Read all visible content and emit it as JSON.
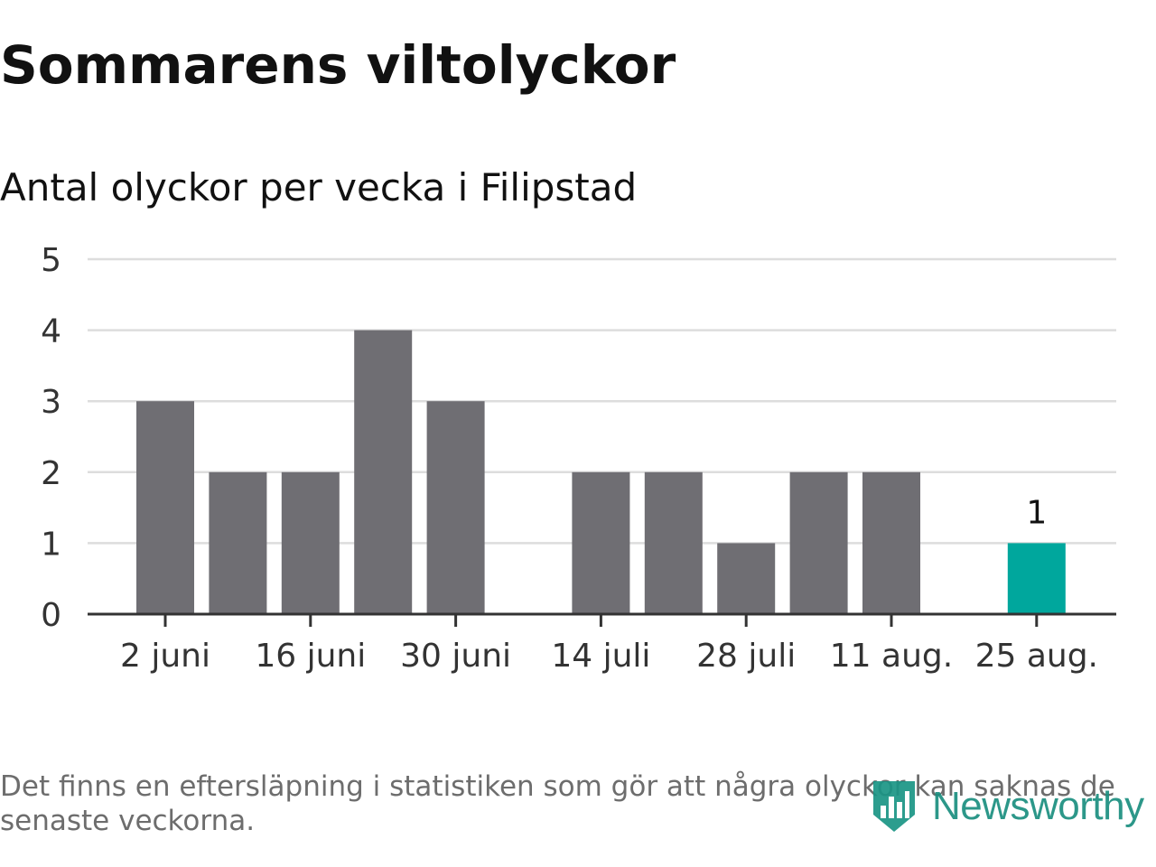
{
  "title": "Sommarens viltolyckor",
  "subtitle": "Antal olyckor per vecka i Filipstad",
  "note": "Det finns en eftersläpning i statistiken som gör att några olyckor kan saknas de senaste veckorna.",
  "brand": {
    "name": "Newsworthy",
    "color": "#1b9585",
    "icon": "bar-chart-shield-icon"
  },
  "colors": {
    "bar": "#6f6e73",
    "highlight": "#00a79d",
    "grid": "#dddddd",
    "axis": "#333333",
    "tick_text": "#333333"
  },
  "chart_data": {
    "type": "bar",
    "x": [
      "2 juni",
      "9 juni",
      "16 juni",
      "23 juni",
      "30 juni",
      "7 juli",
      "14 juli",
      "21 juli",
      "28 juli",
      "4 aug.",
      "11 aug.",
      "18 aug.",
      "25 aug."
    ],
    "values": [
      3,
      2,
      2,
      4,
      3,
      0,
      2,
      2,
      1,
      2,
      2,
      0,
      1
    ],
    "highlight_index": 12,
    "data_labels": [
      {
        "index": 12,
        "text": "1"
      }
    ],
    "xticks": [
      "2 juni",
      "16 juni",
      "30 juni",
      "14 juli",
      "28 juli",
      "11 aug.",
      "25 aug."
    ],
    "yticks": [
      "0",
      "1",
      "2",
      "3",
      "4",
      "5"
    ],
    "ylim": [
      0,
      5
    ],
    "grid": true,
    "legend": "none"
  }
}
